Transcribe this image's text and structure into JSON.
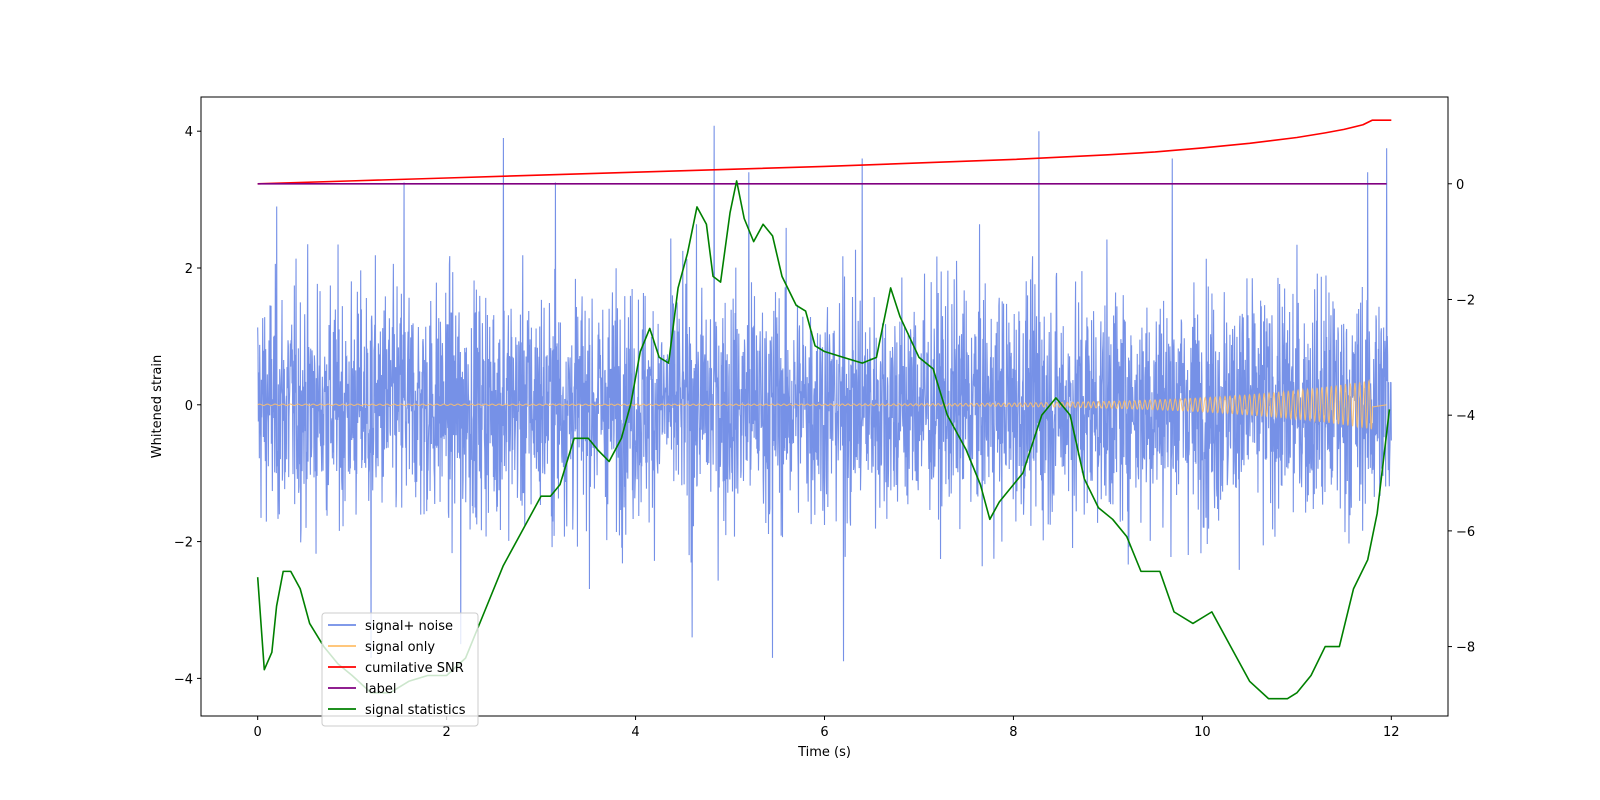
{
  "chart_data": {
    "type": "line",
    "xlabel": "Time (s)",
    "ylabel": "Whitened strain",
    "y2label": "",
    "xlim": [
      -0.6,
      12.6
    ],
    "ylim": [
      -4.55,
      4.5
    ],
    "y2lim": [
      -9.2,
      1.5
    ],
    "xticks": [
      0,
      2,
      4,
      6,
      8,
      10,
      12
    ],
    "yticks": [
      -4,
      -2,
      0,
      2,
      4
    ],
    "y2ticks": [
      -8,
      -6,
      -4,
      -2,
      0
    ],
    "legend_position": "lower-left",
    "series": [
      {
        "name": "signal+ noise",
        "color": "#6f8be6",
        "axis": "left",
        "kind": "noise",
        "x_range": [
          0,
          12
        ],
        "typical_amplitude": 2.2,
        "spikes": [
          {
            "x": 0.2,
            "y": 2.9
          },
          {
            "x": 1.55,
            "y": 3.25
          },
          {
            "x": 2.6,
            "y": 3.9
          },
          {
            "x": 3.15,
            "y": 3.25
          },
          {
            "x": 4.83,
            "y": 4.08
          },
          {
            "x": 5.2,
            "y": 3.4
          },
          {
            "x": 6.4,
            "y": 3.6
          },
          {
            "x": 8.27,
            "y": 4.0
          },
          {
            "x": 9.68,
            "y": 3.6
          },
          {
            "x": 11.75,
            "y": 3.4
          },
          {
            "x": 11.95,
            "y": 3.75
          },
          {
            "x": 1.2,
            "y": -3.7
          },
          {
            "x": 5.45,
            "y": -3.7
          },
          {
            "x": 6.2,
            "y": -3.75
          },
          {
            "x": 2.15,
            "y": -3.5
          },
          {
            "x": 4.6,
            "y": -3.4
          }
        ]
      },
      {
        "name": "signal only",
        "color": "#ffbf6a",
        "axis": "left",
        "kind": "chirp",
        "x_range": [
          0,
          11.8
        ],
        "amplitude_end": 0.35
      },
      {
        "name": "cumilative SNR",
        "color": "#ff0000",
        "axis": "right",
        "x": [
          0,
          1,
          2,
          3,
          4,
          5,
          6,
          7,
          8,
          9,
          9.5,
          10,
          10.5,
          11,
          11.3,
          11.5,
          11.7,
          11.8,
          12
        ],
        "values": [
          0.0,
          0.05,
          0.1,
          0.15,
          0.2,
          0.25,
          0.3,
          0.36,
          0.42,
          0.5,
          0.55,
          0.62,
          0.7,
          0.8,
          0.88,
          0.94,
          1.02,
          1.1,
          1.1
        ]
      },
      {
        "name": "label",
        "color": "#800080",
        "axis": "right",
        "x": [
          0,
          11.95
        ],
        "values": [
          0,
          0
        ]
      },
      {
        "name": "signal statistics",
        "color": "#008000",
        "axis": "right",
        "x": [
          0,
          0.07,
          0.15,
          0.2,
          0.27,
          0.35,
          0.45,
          0.55,
          0.7,
          0.85,
          1.0,
          1.2,
          1.4,
          1.6,
          1.8,
          2.0,
          2.2,
          2.4,
          2.6,
          2.8,
          3.0,
          3.1,
          3.2,
          3.35,
          3.5,
          3.6,
          3.72,
          3.85,
          3.95,
          4.05,
          4.15,
          4.25,
          4.35,
          4.45,
          4.55,
          4.65,
          4.75,
          4.82,
          4.9,
          5.0,
          5.07,
          5.15,
          5.25,
          5.35,
          5.45,
          5.55,
          5.7,
          5.8,
          5.9,
          6.0,
          6.2,
          6.4,
          6.55,
          6.7,
          6.8,
          7.0,
          7.15,
          7.3,
          7.5,
          7.65,
          7.75,
          7.85,
          7.95,
          8.1,
          8.3,
          8.45,
          8.6,
          8.75,
          8.9,
          9.05,
          9.2,
          9.35,
          9.55,
          9.7,
          9.9,
          10.1,
          10.3,
          10.5,
          10.7,
          10.9,
          11.0,
          11.15,
          11.3,
          11.45,
          11.6,
          11.75,
          11.85,
          11.98
        ],
        "values": [
          -6.8,
          -8.4,
          -8.1,
          -7.3,
          -6.7,
          -6.7,
          -7.0,
          -7.6,
          -8.0,
          -8.3,
          -8.5,
          -8.8,
          -8.8,
          -8.6,
          -8.5,
          -8.5,
          -8.2,
          -7.4,
          -6.6,
          -6.0,
          -5.4,
          -5.4,
          -5.2,
          -4.4,
          -4.4,
          -4.6,
          -4.8,
          -4.4,
          -3.8,
          -2.9,
          -2.5,
          -3.0,
          -3.1,
          -1.8,
          -1.2,
          -0.4,
          -0.7,
          -1.6,
          -1.7,
          -0.5,
          0.05,
          -0.6,
          -1.0,
          -0.7,
          -0.9,
          -1.6,
          -2.1,
          -2.2,
          -2.8,
          -2.9,
          -3.0,
          -3.1,
          -3.0,
          -1.8,
          -2.3,
          -3.0,
          -3.2,
          -4.0,
          -4.6,
          -5.2,
          -5.8,
          -5.5,
          -5.3,
          -5.0,
          -4.0,
          -3.7,
          -4.0,
          -5.1,
          -5.6,
          -5.8,
          -6.1,
          -6.7,
          -6.7,
          -7.4,
          -7.6,
          -7.4,
          -8.0,
          -8.6,
          -8.9,
          -8.9,
          -8.8,
          -8.5,
          -8.0,
          -8.0,
          -7.0,
          -6.5,
          -5.7,
          -3.9
        ]
      }
    ]
  }
}
